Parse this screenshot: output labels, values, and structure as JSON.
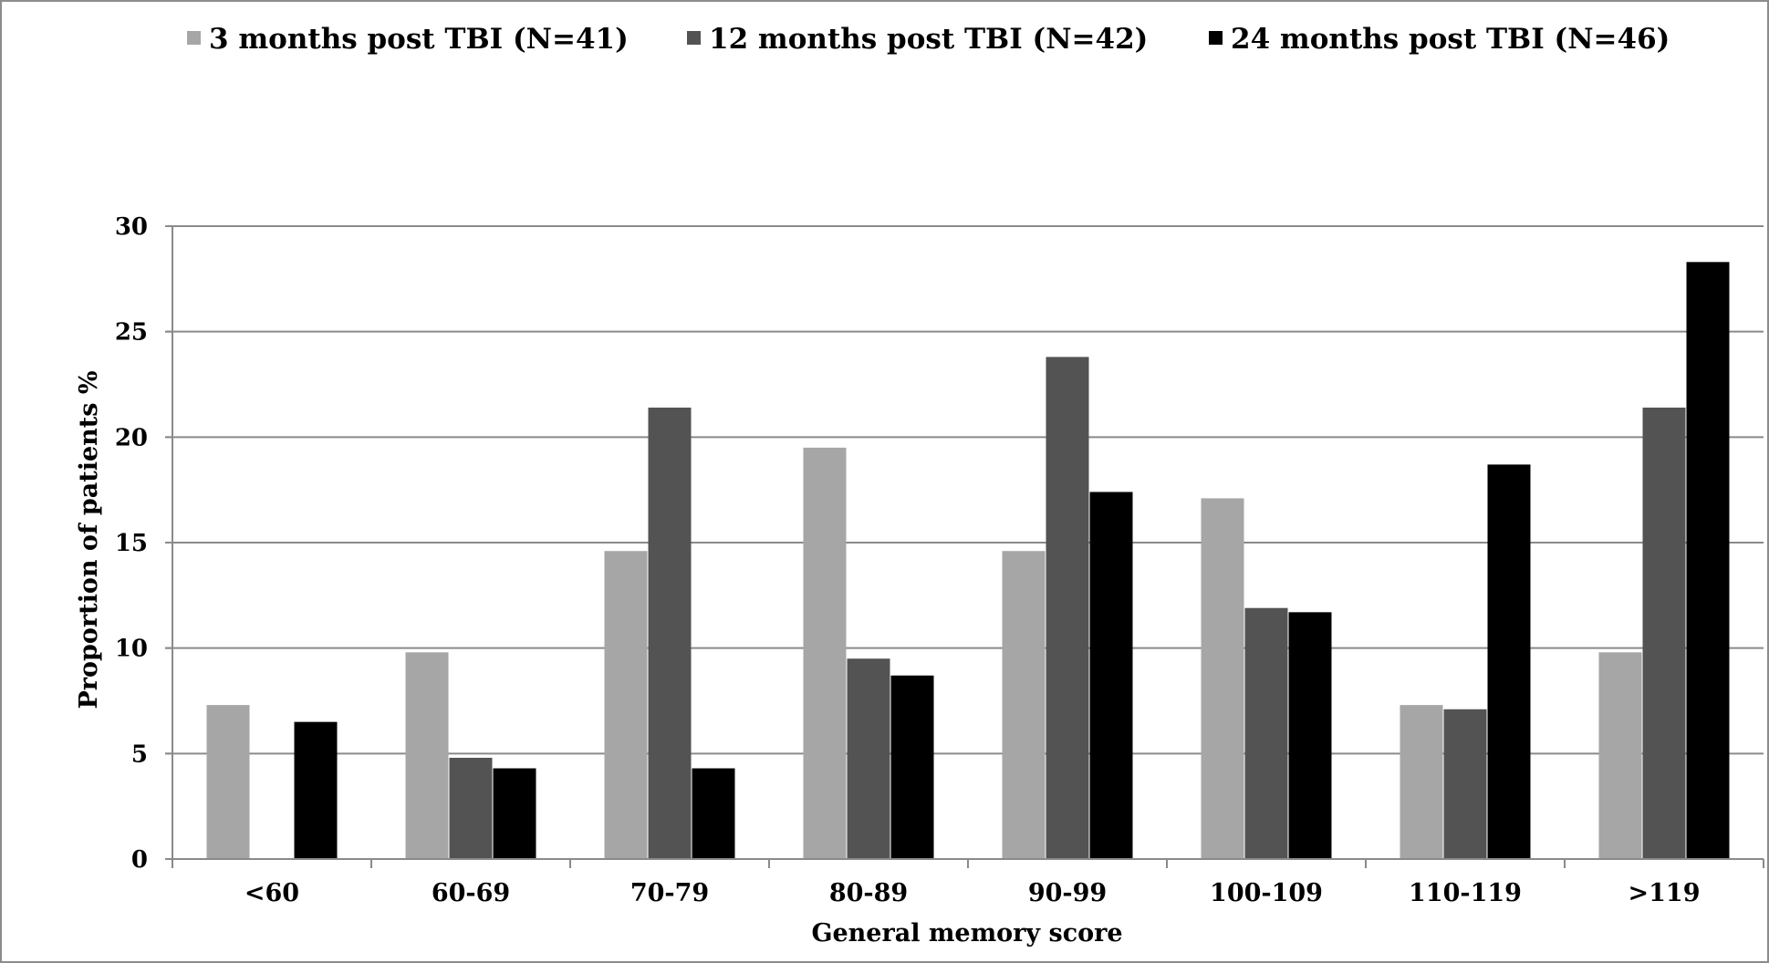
{
  "chart_data": {
    "type": "bar",
    "title": "",
    "xlabel": "General memory score",
    "ylabel": "Proportion of patients %",
    "ylim": [
      0,
      30
    ],
    "yticks": [
      0,
      5,
      10,
      15,
      20,
      25,
      30
    ],
    "grid": true,
    "legend_position": "top",
    "categories": [
      "<60",
      "60-69",
      "70-79",
      "80-89",
      "90-99",
      "100-109",
      "110-119",
      ">119"
    ],
    "series": [
      {
        "name": "3 months post TBI (N=41)",
        "color": "#a6a6a6",
        "values": [
          7.3,
          9.8,
          14.6,
          19.5,
          14.6,
          17.1,
          7.3,
          9.8
        ]
      },
      {
        "name": "12 months post TBI (N=42)",
        "color": "#535353",
        "values": [
          0,
          4.8,
          21.4,
          9.5,
          23.8,
          11.9,
          7.1,
          21.4
        ]
      },
      {
        "name": "24 months post TBI (N=46)",
        "color": "#000000",
        "values": [
          6.5,
          4.3,
          4.3,
          8.7,
          17.4,
          11.7,
          18.7,
          28.3
        ]
      }
    ]
  }
}
